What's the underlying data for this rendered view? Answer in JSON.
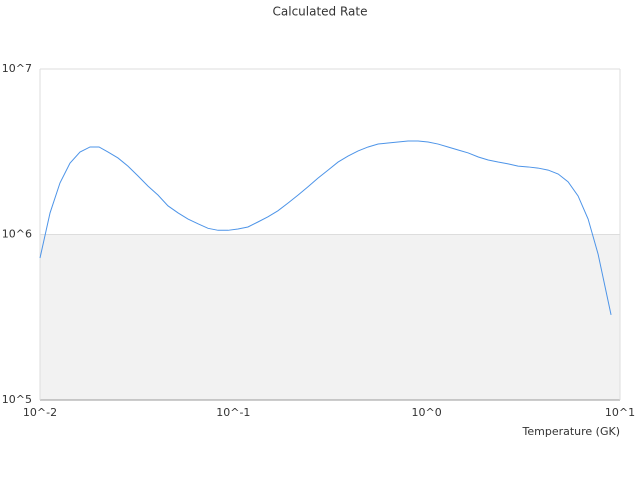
{
  "chart_data": {
    "type": "line",
    "title": "Calculated Rate",
    "xlabel": "Temperature (GK)",
    "xscale": "log",
    "yscale": "log",
    "xlim": [
      0.01,
      10
    ],
    "ylim": [
      100000,
      10000000
    ],
    "xticks": [
      {
        "value": 0.01,
        "label": "10^-2"
      },
      {
        "value": 0.1,
        "label": "10^-1"
      },
      {
        "value": 1,
        "label": "10^0"
      },
      {
        "value": 10,
        "label": "10^1"
      }
    ],
    "yticks": [
      {
        "value": 100000,
        "label": "10^5"
      },
      {
        "value": 1000000,
        "label": "10^6"
      },
      {
        "value": 10000000,
        "label": "10^7"
      }
    ],
    "grid": true,
    "band_color": "#f2f2f2",
    "series": [
      {
        "color": "#4d94e8",
        "x": [
          0.01,
          0.01127,
          0.01269,
          0.01429,
          0.0161,
          0.01815,
          0.0202,
          0.0225,
          0.0253,
          0.0285,
          0.0321,
          0.0362,
          0.0408,
          0.0459,
          0.0518,
          0.0583,
          0.0657,
          0.074,
          0.0834,
          0.0939,
          0.1057,
          0.119,
          0.134,
          0.151,
          0.17,
          0.192,
          0.216,
          0.243,
          0.274,
          0.309,
          0.348,
          0.392,
          0.442,
          0.498,
          0.561,
          0.631,
          0.711,
          0.801,
          0.903,
          1.017,
          1.146,
          1.29,
          1.455,
          1.64,
          1.85,
          2.08,
          2.34,
          2.64,
          2.97,
          3.35,
          3.77,
          4.25,
          4.79,
          5.39,
          6.07,
          6.84,
          7.7,
          8.99
        ],
        "values": [
          721000,
          1350000,
          2050000,
          2700000,
          3150000,
          3380000,
          3380000,
          3150000,
          2900000,
          2590000,
          2260000,
          1960000,
          1730000,
          1490000,
          1350000,
          1240000,
          1160000,
          1090000,
          1060000,
          1060000,
          1080000,
          1110000,
          1190000,
          1280000,
          1390000,
          1550000,
          1730000,
          1940000,
          2190000,
          2450000,
          2740000,
          2980000,
          3200000,
          3380000,
          3520000,
          3570000,
          3620000,
          3670000,
          3670000,
          3620000,
          3520000,
          3380000,
          3240000,
          3110000,
          2940000,
          2820000,
          2740000,
          2670000,
          2590000,
          2560000,
          2520000,
          2450000,
          2320000,
          2080000,
          1710000,
          1240000,
          763000,
          327000
        ]
      }
    ]
  }
}
